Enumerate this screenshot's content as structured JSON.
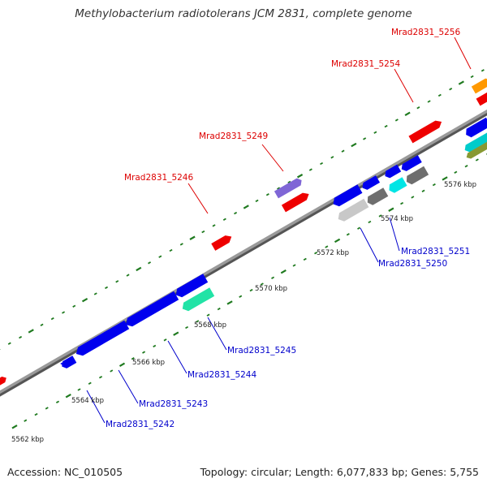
{
  "title": "Methylobacterium radiotolerans JCM 2831, complete genome",
  "footer": {
    "accession": "Accession: NC_010505",
    "summary": "Topology: circular; Length: 6,077,833 bp; Genes: 5,755"
  },
  "colors": {
    "backbone": "#8a8a8a",
    "tick": "#1f7a1f",
    "forward_label": "#dd0000",
    "reverse_label": "#0000cc",
    "label_line_forward": "#dd0000",
    "label_line_reverse": "#0000cc"
  },
  "scale_labels": [
    "5562 kbp",
    "5564 kbp",
    "5566 kbp",
    "5568 kbp",
    "5570 kbp",
    "5572 kbp",
    "5574 kbp",
    "5576 kbp"
  ],
  "forward_labels": [
    "Mrad2831_5246",
    "Mrad2831_5249",
    "Mrad2831_5254",
    "Mrad2831_5256"
  ],
  "reverse_labels": [
    "Mrad2831_5242",
    "Mrad2831_5243",
    "Mrad2831_5244",
    "Mrad2831_5245",
    "Mrad2831_5250",
    "Mrad2831_5251"
  ],
  "features": [
    {
      "name": "cds-red-left",
      "color": "#ee0000"
    },
    {
      "name": "cds-5246",
      "color": "#ee0000"
    },
    {
      "name": "cds-5249-a",
      "color": "#8866cc"
    },
    {
      "name": "cds-5249-b",
      "color": "#ee0000"
    },
    {
      "name": "cds-5254",
      "color": "#ee0000"
    },
    {
      "name": "cds-5256-a",
      "color": "#ff9900"
    },
    {
      "name": "cds-5256-b",
      "color": "#ee0000"
    },
    {
      "name": "cds-5242",
      "color": "#0000ee"
    },
    {
      "name": "cds-5243",
      "color": "#0000ee"
    },
    {
      "name": "cds-5244",
      "color": "#0000ee"
    },
    {
      "name": "cds-5245-a",
      "color": "#0000ee"
    },
    {
      "name": "cds-5245-b",
      "color": "#22ddaa"
    },
    {
      "name": "cds-5250-a",
      "color": "#0000ee"
    },
    {
      "name": "cds-5250-b",
      "color": "#c8c8c8"
    },
    {
      "name": "cds-gray-1",
      "color": "#777777"
    },
    {
      "name": "cds-5251-a",
      "color": "#0000ee"
    },
    {
      "name": "cds-5251-b",
      "color": "#00dddd"
    },
    {
      "name": "cds-blue-x",
      "color": "#0000ee"
    },
    {
      "name": "cds-gray-2",
      "color": "#777777"
    },
    {
      "name": "cds-blue-right",
      "color": "#0000ee"
    },
    {
      "name": "cds-cyan-right",
      "color": "#00cccc"
    },
    {
      "name": "cds-olive-right",
      "color": "#889933"
    }
  ]
}
